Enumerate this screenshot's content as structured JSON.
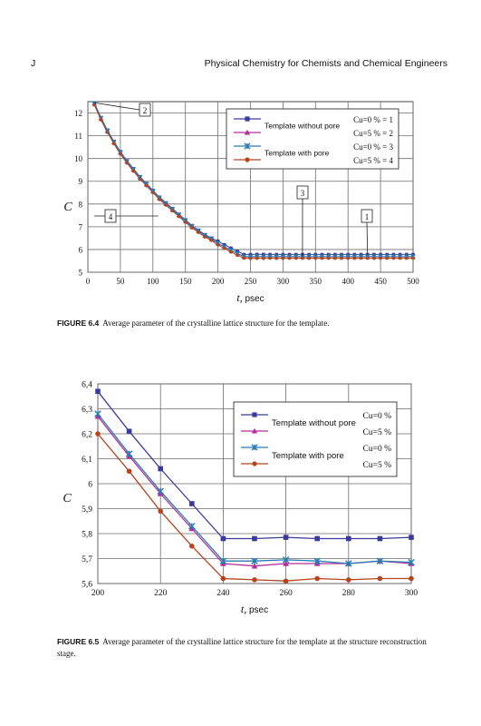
{
  "header": {
    "letter": "J",
    "book_title": "Physical Chemistry for Chemists and Chemical Engineers"
  },
  "legend_labels": {
    "without_pore": "Template without pore",
    "with_pore": "Template with pore"
  },
  "colors": {
    "series1": "#3a3a9c",
    "series2": "#b0309a",
    "series3": "#2a7bb0",
    "series4": "#b5441d",
    "grid": "#6e6e6e"
  },
  "figures": [
    {
      "label": "FIGURE 6.4",
      "caption": "Average parameter of the crystalline lattice structure for the template."
    },
    {
      "label": "FIGURE 6.5",
      "caption": "Average parameter of the crystalline lattice structure for the template at the structure reconstruction stage."
    }
  ],
  "chart_data": [
    {
      "type": "line",
      "title": "",
      "xlabel": "t, psec",
      "ylabel": "C",
      "xlim": [
        0,
        500
      ],
      "ylim": [
        5,
        12.5
      ],
      "xticks": [
        0,
        50,
        100,
        150,
        200,
        250,
        300,
        350,
        400,
        450,
        500
      ],
      "yticks": [
        5,
        6,
        7,
        8,
        9,
        10,
        11,
        12
      ],
      "grid": true,
      "legend_position": "top-right",
      "x": [
        10,
        20,
        30,
        40,
        50,
        60,
        70,
        80,
        90,
        100,
        110,
        120,
        130,
        140,
        150,
        160,
        170,
        180,
        190,
        200,
        210,
        220,
        230,
        240,
        250,
        260,
        270,
        280,
        290,
        300,
        310,
        320,
        330,
        340,
        350,
        360,
        370,
        380,
        390,
        400,
        410,
        420,
        430,
        440,
        450,
        460,
        470,
        480,
        490,
        500
      ],
      "series": [
        {
          "name": "Cu=0 % = 1",
          "marker": "square",
          "values": [
            12.45,
            11.8,
            11.25,
            10.75,
            10.3,
            9.9,
            9.55,
            9.2,
            8.9,
            8.6,
            8.3,
            8.05,
            7.8,
            7.55,
            7.3,
            7.05,
            6.85,
            6.65,
            6.5,
            6.37,
            6.21,
            6.06,
            5.92,
            5.78,
            5.78,
            5.785,
            5.785,
            5.78,
            5.78,
            5.78,
            5.78,
            5.78,
            5.78,
            5.78,
            5.78,
            5.78,
            5.78,
            5.78,
            5.78,
            5.78,
            5.78,
            5.78,
            5.78,
            5.78,
            5.78,
            5.78,
            5.78,
            5.78,
            5.78,
            5.78
          ]
        },
        {
          "name": "Cu=5 % = 2",
          "marker": "triangle",
          "values": [
            12.4,
            11.75,
            11.2,
            10.7,
            10.25,
            9.85,
            9.5,
            9.15,
            8.85,
            8.55,
            8.25,
            8.0,
            7.75,
            7.5,
            7.25,
            7.0,
            6.8,
            6.6,
            6.45,
            6.27,
            6.11,
            5.96,
            5.82,
            5.68,
            5.67,
            5.68,
            5.68,
            5.68,
            5.68,
            5.69,
            5.68,
            5.68,
            5.68,
            5.68,
            5.68,
            5.68,
            5.68,
            5.68,
            5.68,
            5.68,
            5.68,
            5.68,
            5.68,
            5.68,
            5.68,
            5.68,
            5.68,
            5.68,
            5.68,
            5.68
          ]
        },
        {
          "name": "Cu=0 % = 3",
          "marker": "asterisk",
          "values": [
            12.42,
            11.77,
            11.22,
            10.72,
            10.27,
            9.87,
            9.52,
            9.17,
            8.87,
            8.57,
            8.27,
            8.02,
            7.77,
            7.52,
            7.27,
            7.02,
            6.82,
            6.62,
            6.47,
            6.28,
            6.12,
            5.97,
            5.83,
            5.69,
            5.69,
            5.69,
            5.69,
            5.69,
            5.69,
            5.69,
            5.69,
            5.69,
            5.69,
            5.69,
            5.69,
            5.69,
            5.69,
            5.69,
            5.69,
            5.69,
            5.69,
            5.69,
            5.69,
            5.69,
            5.69,
            5.69,
            5.69,
            5.69,
            5.69,
            5.69
          ]
        },
        {
          "name": "Cu=5 % = 4",
          "marker": "dot",
          "values": [
            12.35,
            11.7,
            11.15,
            10.65,
            10.2,
            9.8,
            9.45,
            9.1,
            8.8,
            8.5,
            8.2,
            7.95,
            7.7,
            7.45,
            7.2,
            6.95,
            6.75,
            6.55,
            6.4,
            6.2,
            6.05,
            5.89,
            5.75,
            5.62,
            5.61,
            5.615,
            5.61,
            5.62,
            5.61,
            5.62,
            5.615,
            5.62,
            5.615,
            5.615,
            5.62,
            5.615,
            5.62,
            5.615,
            5.615,
            5.62,
            5.615,
            5.62,
            5.615,
            5.615,
            5.62,
            5.615,
            5.62,
            5.615,
            5.615,
            5.62
          ]
        }
      ],
      "annotations": [
        {
          "text": "2",
          "x": 10,
          "y": 12.45
        },
        {
          "text": "4",
          "x": 10,
          "y": 7.8
        },
        {
          "text": "3",
          "x": 330,
          "y": 5.69
        },
        {
          "text": "1",
          "x": 430,
          "y": 5.78
        }
      ]
    },
    {
      "type": "line",
      "title": "",
      "xlabel": "t, psec",
      "ylabel": "C",
      "xlim": [
        200,
        300
      ],
      "ylim": [
        5.6,
        6.4
      ],
      "xticks": [
        200,
        220,
        240,
        260,
        280,
        300
      ],
      "yticks": [
        5.6,
        5.7,
        5.8,
        5.9,
        6.0,
        6.1,
        6.2,
        6.3,
        6.4
      ],
      "ytick_labels": [
        "5,6",
        "5,7",
        "5,8",
        "5,9",
        "6",
        "6,1",
        "6,2",
        "6,3",
        "6,4"
      ],
      "grid": true,
      "legend_position": "top-right",
      "x": [
        200,
        210,
        220,
        230,
        240,
        250,
        260,
        270,
        280,
        290,
        300
      ],
      "series": [
        {
          "name": "Cu=0 %",
          "marker": "square",
          "values": [
            6.37,
            6.21,
            6.06,
            5.92,
            5.78,
            5.78,
            5.785,
            5.78,
            5.78,
            5.78,
            5.785
          ]
        },
        {
          "name": "Cu=5 %",
          "marker": "triangle",
          "values": [
            6.27,
            6.11,
            5.96,
            5.82,
            5.68,
            5.67,
            5.68,
            5.68,
            5.68,
            5.69,
            5.68
          ]
        },
        {
          "name": "Cu=0 %",
          "marker": "asterisk",
          "values": [
            6.28,
            6.12,
            5.97,
            5.83,
            5.69,
            5.69,
            5.695,
            5.69,
            5.68,
            5.69,
            5.685
          ]
        },
        {
          "name": "Cu=5 %",
          "marker": "dot",
          "values": [
            6.2,
            6.05,
            5.89,
            5.75,
            5.62,
            5.615,
            5.61,
            5.62,
            5.615,
            5.62,
            5.62
          ]
        }
      ]
    }
  ]
}
